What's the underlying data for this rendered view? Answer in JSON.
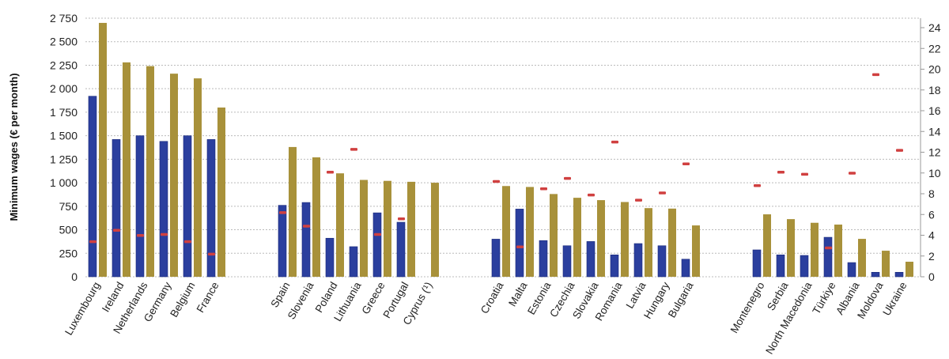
{
  "chart_data": {
    "type": "bar",
    "ylabel": "Minimum wages (€ per month)",
    "ylim": [
      0,
      2750
    ],
    "yticks": [
      "0",
      "250",
      "500",
      "750",
      "1 000",
      "1 250",
      "1 500",
      "1 750",
      "2 000",
      "2 250",
      "2 500",
      "2 750"
    ],
    "y2lim": [
      0,
      25
    ],
    "y2ticks": [
      "0",
      "2",
      "4",
      "6",
      "8",
      "10",
      "12",
      "14",
      "16",
      "18",
      "20",
      "22",
      "24"
    ],
    "grid": true,
    "groups": [
      [
        "Luxembourg",
        "Ireland",
        "Netherlands",
        "Germany",
        "Belgium",
        "France"
      ],
      [
        "Spain",
        "Slovenia",
        "Poland",
        "Lithuania",
        "Greece",
        "Portugal",
        "Cyprus (¹)"
      ],
      [
        "Croatia",
        "Malta",
        "Estonia",
        "Czechia",
        "Slovakia",
        "Romania",
        "Latvia",
        "Hungary",
        "Bulgaria"
      ],
      [
        "Montenegro",
        "Serbia",
        "North Macedonia",
        "Türkiye",
        "Albania",
        "Moldova",
        "Ukraine"
      ]
    ],
    "categories": [
      "Luxembourg",
      "Ireland",
      "Netherlands",
      "Germany",
      "Belgium",
      "France",
      "Spain",
      "Slovenia",
      "Poland",
      "Lithuania",
      "Greece",
      "Portugal",
      "Cyprus (¹)",
      "Croatia",
      "Malta",
      "Estonia",
      "Czechia",
      "Slovakia",
      "Romania",
      "Latvia",
      "Hungary",
      "Bulgaria",
      "Montenegro",
      "Serbia",
      "North Macedonia",
      "Türkiye",
      "Albania",
      "Moldova",
      "Ukraine"
    ],
    "series": [
      {
        "axis": "left",
        "kind": "bar",
        "color": "#2b3f9e",
        "values": [
          1920,
          1460,
          1500,
          1440,
          1500,
          1460,
          760,
          790,
          410,
          320,
          680,
          580,
          null,
          400,
          720,
          385,
          330,
          375,
          233,
          353,
          330,
          187,
          286,
          233,
          227,
          420,
          151,
          48,
          48
        ]
      },
      {
        "axis": "left",
        "kind": "bar",
        "color": "#a8913a",
        "values": [
          2700,
          2280,
          2240,
          2160,
          2110,
          1800,
          1380,
          1270,
          1100,
          1030,
          1020,
          1010,
          1000,
          965,
          955,
          880,
          840,
          815,
          795,
          730,
          725,
          546,
          664,
          613,
          574,
          555,
          403,
          277,
          160
        ]
      },
      {
        "axis": "right",
        "kind": "marker",
        "color": "#d04040",
        "values": [
          3.4,
          4.5,
          4.0,
          4.1,
          3.4,
          2.2,
          6.2,
          4.9,
          10.1,
          12.3,
          4.1,
          5.6,
          null,
          9.2,
          2.9,
          8.5,
          9.5,
          7.9,
          13.0,
          7.4,
          8.1,
          10.9,
          8.8,
          10.1,
          9.9,
          2.8,
          10.0,
          19.5,
          12.2
        ]
      }
    ]
  }
}
